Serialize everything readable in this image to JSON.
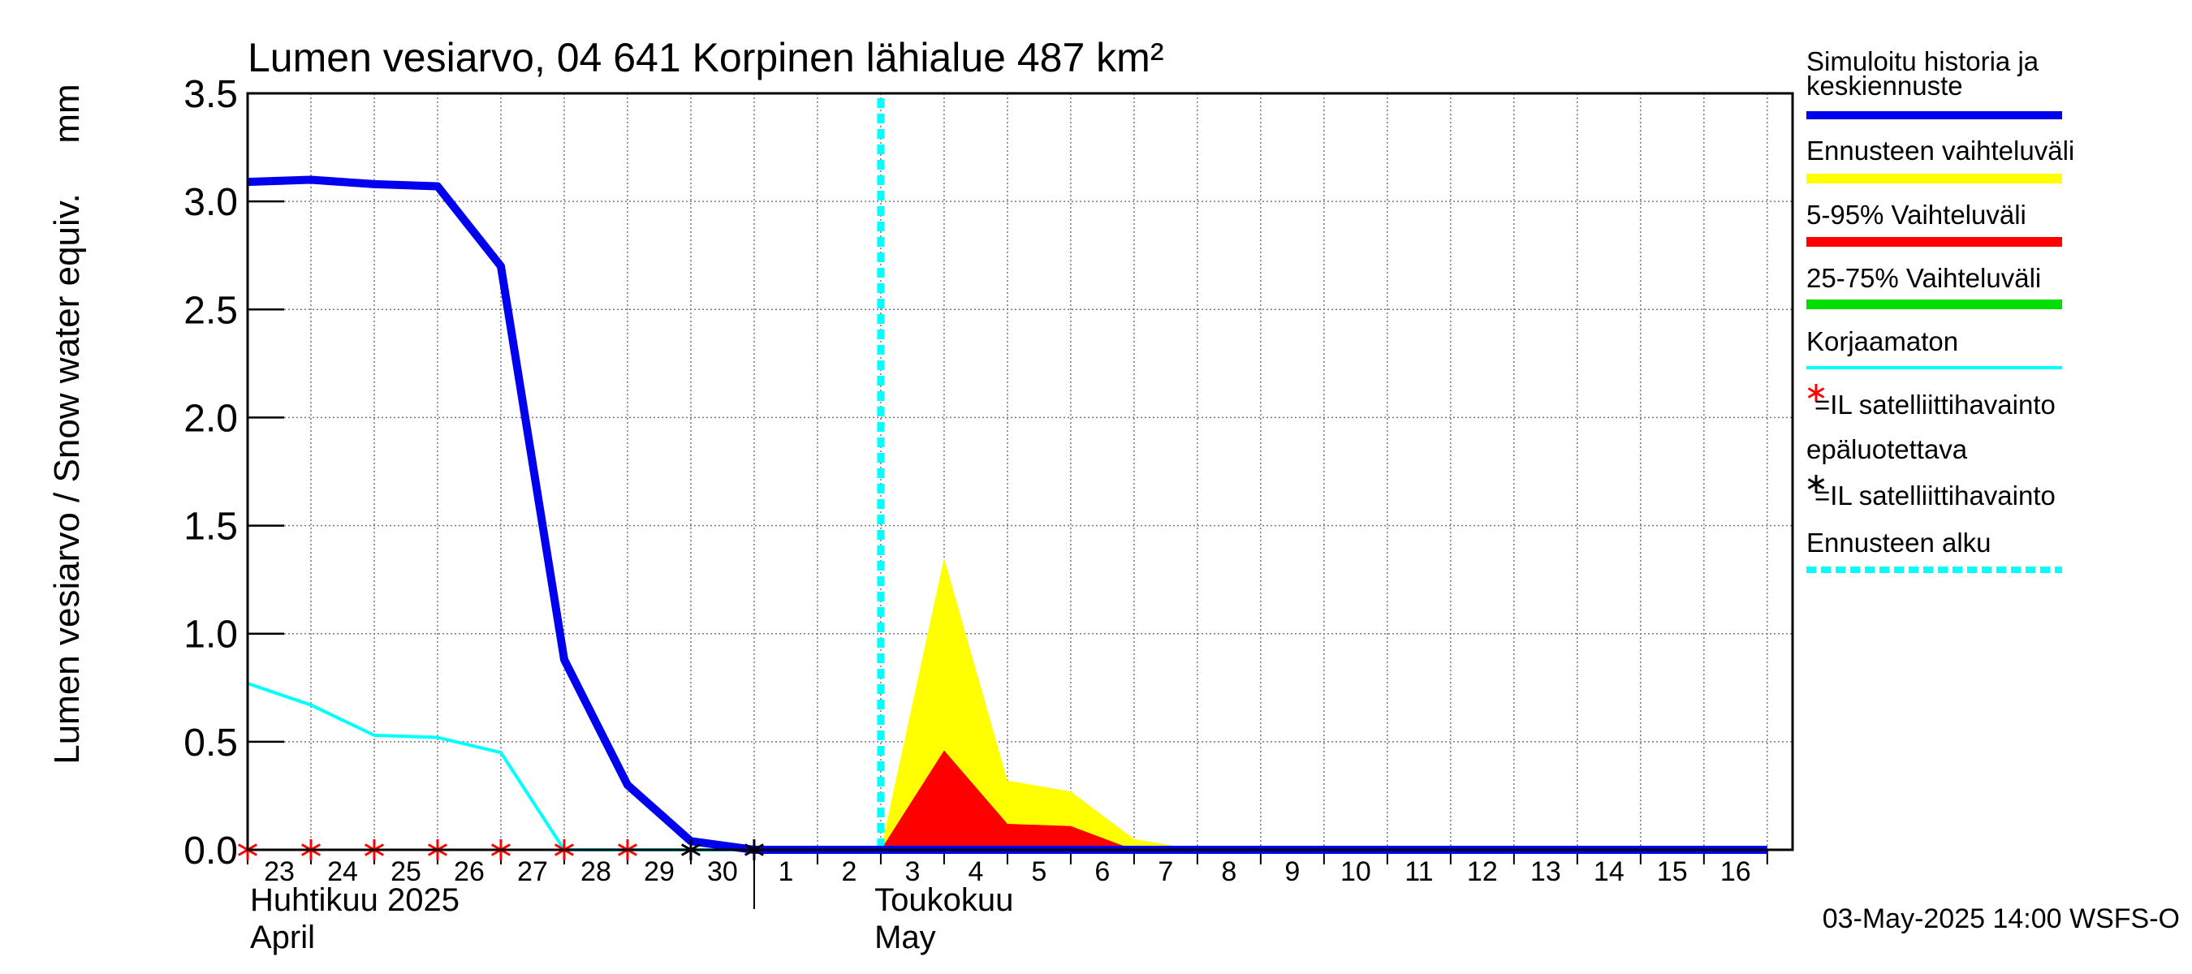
{
  "chart_data": {
    "type": "area",
    "title": "Lumen vesiarvo, 04 641 Korpinen lähialue 487 km²",
    "ylabel": "Lumen vesiarvo / Snow water equiv.",
    "ylabel_unit": "mm",
    "ylim": [
      0,
      3.5
    ],
    "yticks": [
      "0.0",
      "0.5",
      "1.0",
      "1.5",
      "2.0",
      "2.5",
      "3.0",
      "3.5"
    ],
    "ytick_values": [
      0,
      0.5,
      1.0,
      1.5,
      2.0,
      2.5,
      3.0,
      3.5
    ],
    "xlim": [
      0,
      24
    ],
    "x_tick_labels": [
      "23",
      "24",
      "25",
      "26",
      "27",
      "28",
      "29",
      "30",
      "1",
      "2",
      "3",
      "4",
      "5",
      "6",
      "7",
      "8",
      "9",
      "10",
      "11",
      "12",
      "13",
      "14",
      "15",
      "16"
    ],
    "month_labels": [
      {
        "line1": "Huhtikuu  2025",
        "line2": "April"
      },
      {
        "line1": "Toukokuu",
        "line2": "May"
      }
    ],
    "forecast_start_day": 10,
    "series": [
      {
        "name": "Simuloitu historia ja keskiennuste",
        "color": "#0000ee",
        "x": [
          0,
          1,
          2,
          3,
          4,
          5,
          6,
          7,
          8,
          9,
          10,
          11,
          12,
          13,
          14,
          15,
          16,
          17,
          18,
          19,
          20,
          21,
          22,
          23,
          24
        ],
        "values": [
          3.09,
          3.1,
          3.08,
          3.07,
          2.7,
          0.88,
          0.3,
          0.04,
          0.0,
          0.0,
          0.0,
          0.0,
          0.0,
          0.0,
          0.0,
          0.0,
          0.0,
          0.0,
          0.0,
          0.0,
          0.0,
          0.0,
          0.0,
          0.0,
          0.0
        ]
      },
      {
        "name": "Korjaamaton",
        "color": "#00ffff",
        "x": [
          0,
          1,
          2,
          3,
          4,
          5,
          6,
          7,
          8
        ],
        "values": [
          0.77,
          0.67,
          0.53,
          0.52,
          0.45,
          0.0,
          0.0,
          0.0,
          0.0
        ]
      },
      {
        "name": "Ennusteen vaihteluväli",
        "color": "#ffff00",
        "x": [
          10,
          11,
          12,
          13,
          14,
          15
        ],
        "values": [
          0.0,
          1.35,
          0.32,
          0.27,
          0.05,
          0.0
        ]
      },
      {
        "name": "5-95% Vaihteluväli",
        "color": "#ff0000",
        "x": [
          10,
          11,
          12,
          13,
          14
        ],
        "values": [
          0.0,
          0.46,
          0.12,
          0.11,
          0.0
        ]
      }
    ],
    "satellite_red_x": [
      0,
      1,
      2,
      3,
      4,
      5,
      6
    ],
    "satellite_black_x": [
      7,
      8
    ],
    "legend": [
      {
        "label": "Simuloitu historia ja",
        "label2": "keskiennuste",
        "color": "#0000ee",
        "style": "thick"
      },
      {
        "label": "Ennusteen vaihteluväli",
        "color": "#ffff00",
        "style": "thick"
      },
      {
        "label": "5-95% Vaihteluväli",
        "color": "#ff0000",
        "style": "thick"
      },
      {
        "label": "25-75% Vaihteluväli",
        "color": "#00dd00",
        "style": "thick"
      },
      {
        "label": "Korjaamaton",
        "color": "#00ffff",
        "style": "thin"
      },
      {
        "label": "=IL satelliittihavainto",
        "label_pre": "epäluotettava",
        "color": "#ff0000",
        "style": "star"
      },
      {
        "label": "=IL satelliittihavainto",
        "color": "#000000",
        "style": "star"
      },
      {
        "label": "Ennusteen alku",
        "color": "#00ffff",
        "style": "dashed"
      }
    ],
    "footer": "03-May-2025 14:00 WSFS-O"
  }
}
